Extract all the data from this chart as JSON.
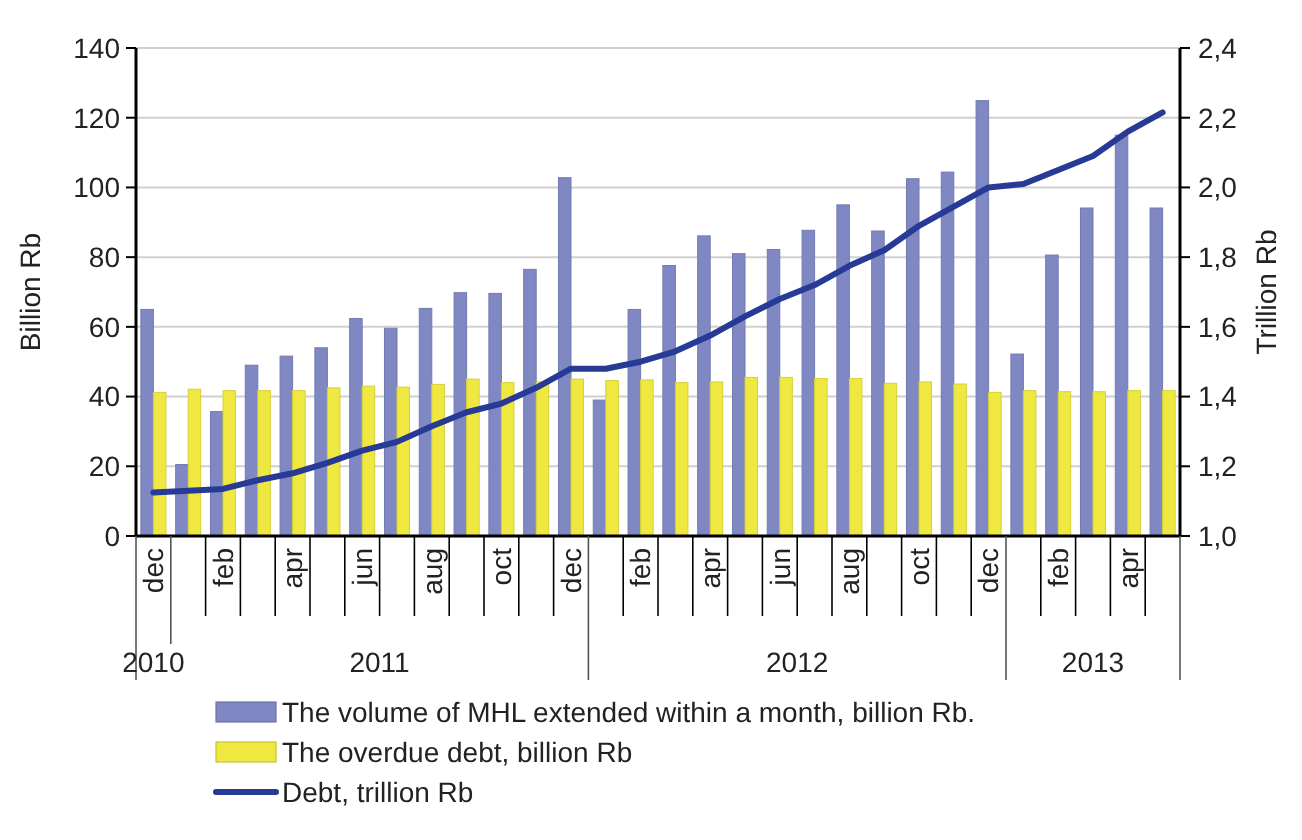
{
  "chart_data": {
    "type": "bar",
    "categories": [
      "dec",
      null,
      "feb",
      null,
      "apr",
      null,
      "jun",
      null,
      "aug",
      null,
      "oct",
      null,
      "dec",
      null,
      "feb",
      null,
      "apr",
      null,
      "jun",
      null,
      "aug",
      null,
      "oct",
      null,
      "dec",
      null,
      "feb",
      null,
      "apr",
      null
    ],
    "ylabel": "Billion Rb",
    "y2label": "Trillion Rb",
    "ylim": [
      0,
      140
    ],
    "yticks": [
      0,
      20,
      40,
      60,
      80,
      100,
      120,
      140
    ],
    "y2lim": [
      1.0,
      2.4
    ],
    "y2ticks": [
      {
        "value": 1.0,
        "label": "1,0"
      },
      {
        "value": 1.2,
        "label": "1,2"
      },
      {
        "value": 1.4,
        "label": "1,4"
      },
      {
        "value": 1.6,
        "label": "1,6"
      },
      {
        "value": 1.8,
        "label": "1,8"
      },
      {
        "value": 2.0,
        "label": "2,0"
      },
      {
        "value": 2.2,
        "label": "2,2"
      },
      {
        "value": 2.4,
        "label": "2,4"
      }
    ],
    "grid": "y",
    "legend": "bottom",
    "annotations": [
      "2010",
      "2011",
      "2012",
      "2013"
    ],
    "series": [
      {
        "name": "The volume of MHL extended within a month, billion Rb.",
        "color": "#8088c4",
        "values": [
          65,
          20.5,
          35.7,
          49,
          51.6,
          54,
          62.4,
          59.6,
          65.3,
          69.8,
          69.6,
          76.5,
          102.8,
          39,
          65,
          77.6,
          86.1,
          81,
          82.2,
          87.7,
          95,
          87.5,
          102.5,
          104.4,
          124.9,
          52.2,
          80.6,
          94.1,
          115,
          94.1
        ]
      },
      {
        "name": "The overdue debt, billion Rb",
        "color": "#eee840",
        "values": [
          41.2,
          42.1,
          41.7,
          41.7,
          41.7,
          42.5,
          43,
          42.7,
          43.5,
          45,
          44,
          44.2,
          45,
          44.6,
          44.8,
          44,
          44.2,
          45.5,
          45.5,
          45.2,
          45.2,
          43.8,
          44.2,
          43.6,
          41.2,
          41.7,
          41.4,
          41.4,
          41.7,
          41.7
        ]
      },
      {
        "name": "Debt, trillion Rb",
        "type": "line",
        "axis": "y2",
        "color": "#263a96",
        "values": [
          1.125,
          1.13,
          1.135,
          1.16,
          1.18,
          1.21,
          1.245,
          1.27,
          1.315,
          1.355,
          1.38,
          1.425,
          1.48,
          1.48,
          1.5,
          1.53,
          1.575,
          1.63,
          1.68,
          1.72,
          1.775,
          1.82,
          1.89,
          1.945,
          2.0,
          2.01,
          2.05,
          2.09,
          2.16,
          2.215
        ]
      }
    ]
  }
}
